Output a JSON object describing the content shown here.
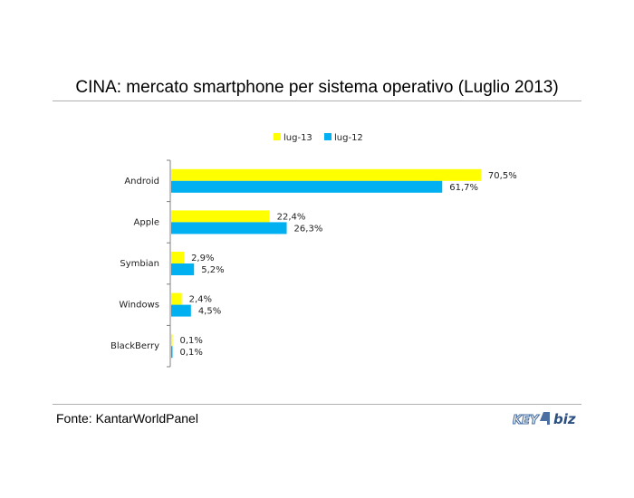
{
  "title": "CINA: mercato smartphone per sistema operativo (Luglio 2013)",
  "source": "Fonte: KantarWorldPanel",
  "logo": {
    "text_left": "KEY",
    "text_right": "biz"
  },
  "colors": {
    "lug13": "#ffff00",
    "lug12": "#00b0f0",
    "axis": "#808080",
    "rule": "#b0b0b0"
  },
  "chart_data": {
    "type": "bar",
    "orientation": "horizontal",
    "title": "CINA: mercato smartphone per sistema operativo (Luglio 2013)",
    "categories": [
      "Android",
      "Apple",
      "Symbian",
      "Windows",
      "BlackBerry"
    ],
    "series": [
      {
        "name": "lug-13",
        "color": "#ffff00",
        "values": [
          70.5,
          22.4,
          2.9,
          2.4,
          0.1
        ],
        "labels": [
          "70,5%",
          "22,4%",
          "2,9%",
          "2,4%",
          "0,1%"
        ]
      },
      {
        "name": "lug-12",
        "color": "#00b0f0",
        "values": [
          61.7,
          26.3,
          5.2,
          4.5,
          0.1
        ],
        "labels": [
          "61,7%",
          "26,3%",
          "5,2%",
          "4,5%",
          "0,1%"
        ]
      }
    ],
    "xlim": [
      0,
      100
    ],
    "legend_position": "top-center",
    "grid": false
  }
}
